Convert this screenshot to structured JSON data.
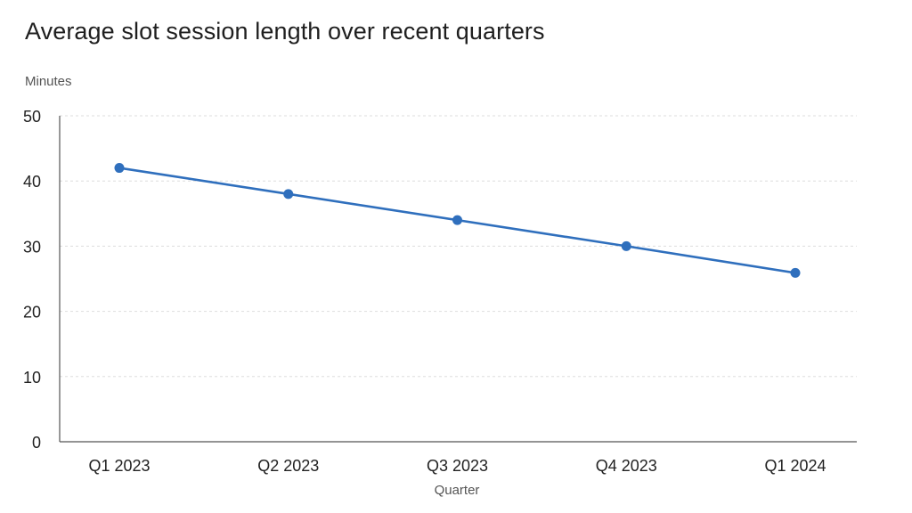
{
  "chart_data": {
    "type": "line",
    "title": "Average slot session length over recent quarters",
    "xlabel": "Quarter",
    "ylabel": "Minutes",
    "categories": [
      "Q1 2023",
      "Q2 2023",
      "Q3 2023",
      "Q4 2023",
      "Q1 2024"
    ],
    "series": [
      {
        "values": [
          42,
          38,
          34,
          30,
          25.9
        ],
        "color": "#2f6fbd"
      }
    ],
    "ylim": [
      0,
      50
    ],
    "yticks": [
      0,
      10,
      20,
      30,
      40,
      50
    ],
    "grid": true,
    "legend": "none"
  }
}
